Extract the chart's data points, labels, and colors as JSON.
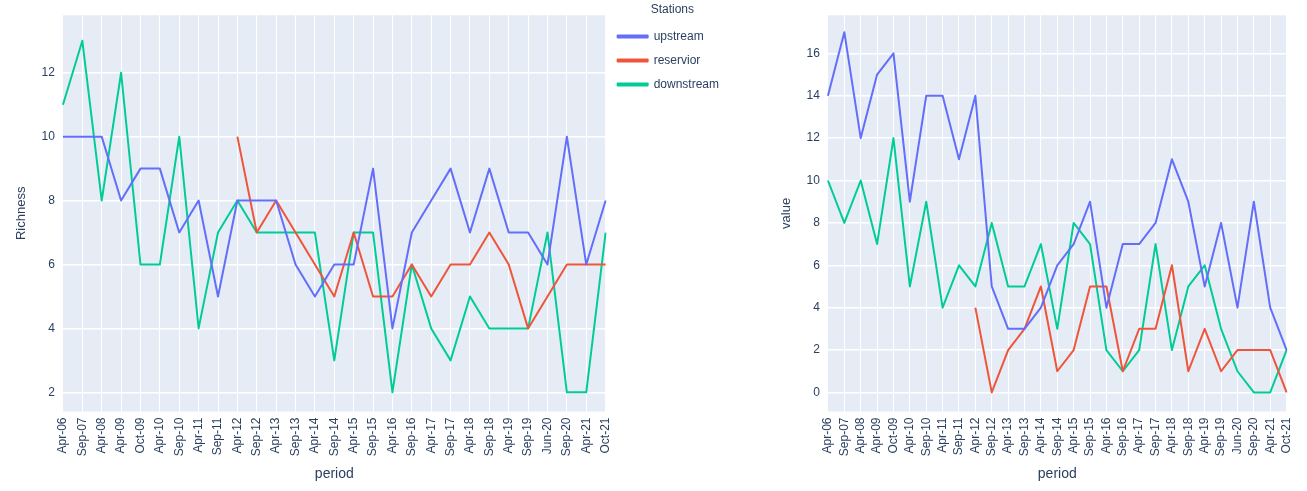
{
  "chart_data": [
    {
      "type": "line",
      "xlabel": "period",
      "ylabel": "Richness",
      "legend_title": "Stations",
      "legend": "top right",
      "grid": true,
      "marker": "none",
      "line_style": "solid",
      "categories": [
        "Apr-06",
        "Sep-07",
        "Apr-08",
        "Apr-09",
        "Oct-09",
        "Apr-10",
        "Sep-10",
        "Apr-11",
        "Sep-11",
        "Apr-12",
        "Sep-12",
        "Apr-13",
        "Sep-13",
        "Apr-14",
        "Sep-14",
        "Apr-15",
        "Sep-15",
        "Apr-16",
        "Sep-16",
        "Apr-17",
        "Sep-17",
        "Apr-18",
        "Sep-18",
        "Apr-19",
        "Sep-19",
        "Jun-20",
        "Sep-20",
        "Apr-21",
        "Oct-21"
      ],
      "ylim": [
        1.4,
        13.8
      ],
      "yticks": [
        2,
        4,
        6,
        8,
        10,
        12
      ],
      "series": [
        {
          "name": "upstream",
          "color": "#636efa",
          "values": [
            10,
            10,
            10,
            8,
            9,
            9,
            7,
            8,
            5,
            8,
            8,
            8,
            6,
            5,
            6,
            6,
            9,
            4,
            7,
            8,
            9,
            7,
            9,
            7,
            7,
            6,
            10,
            6,
            8
          ]
        },
        {
          "name": "reservior",
          "color": "#ef553b",
          "values": [
            null,
            null,
            null,
            null,
            null,
            null,
            null,
            null,
            null,
            10,
            7,
            8,
            7,
            6,
            5,
            7,
            5,
            5,
            6,
            5,
            6,
            6,
            7,
            6,
            4,
            5,
            6,
            6,
            6
          ]
        },
        {
          "name": "downstream",
          "color": "#00cc96",
          "values": [
            11,
            13,
            8,
            12,
            6,
            6,
            10,
            4,
            7,
            8,
            7,
            7,
            7,
            7,
            3,
            7,
            7,
            2,
            6,
            4,
            3,
            5,
            4,
            4,
            4,
            7,
            2,
            2,
            7
          ]
        }
      ]
    },
    {
      "type": "line",
      "xlabel": "period",
      "ylabel": "value",
      "grid": true,
      "marker": "none",
      "line_style": "solid",
      "categories": [
        "Apr-06",
        "Sep-07",
        "Apr-08",
        "Apr-09",
        "Oct-09",
        "Apr-10",
        "Sep-10",
        "Apr-11",
        "Sep-11",
        "Apr-12",
        "Sep-12",
        "Apr-13",
        "Sep-13",
        "Apr-14",
        "Sep-14",
        "Apr-15",
        "Sep-15",
        "Apr-16",
        "Sep-16",
        "Apr-17",
        "Sep-17",
        "Apr-18",
        "Sep-18",
        "Apr-19",
        "Sep-19",
        "Jun-20",
        "Sep-20",
        "Apr-21",
        "Oct-21"
      ],
      "ylim": [
        -0.9,
        17.8
      ],
      "yticks": [
        0,
        2,
        4,
        6,
        8,
        10,
        12,
        14,
        16
      ],
      "series": [
        {
          "color": "#636efa",
          "values": [
            14,
            17,
            12,
            15,
            16,
            9,
            14,
            14,
            11,
            14,
            5,
            3,
            3,
            4,
            6,
            7,
            9,
            4,
            7,
            7,
            8,
            11,
            9,
            5,
            8,
            4,
            9,
            4,
            2
          ]
        },
        {
          "color": "#ef553b",
          "values": [
            null,
            null,
            null,
            null,
            null,
            null,
            null,
            null,
            null,
            4,
            0,
            2,
            3,
            5,
            1,
            2,
            5,
            5,
            1,
            3,
            3,
            6,
            1,
            3,
            1,
            2,
            2,
            2,
            0
          ]
        },
        {
          "color": "#00cc96",
          "values": [
            10,
            8,
            10,
            7,
            12,
            5,
            9,
            4,
            6,
            5,
            8,
            5,
            5,
            7,
            3,
            8,
            7,
            2,
            1,
            2,
            7,
            2,
            5,
            6,
            3,
            1,
            0,
            0,
            2
          ]
        }
      ]
    }
  ]
}
